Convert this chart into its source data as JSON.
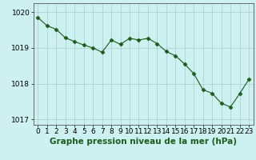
{
  "x": [
    0,
    1,
    2,
    3,
    4,
    5,
    6,
    7,
    8,
    9,
    10,
    11,
    12,
    13,
    14,
    15,
    16,
    17,
    18,
    19,
    20,
    21,
    22,
    23
  ],
  "y": [
    1019.85,
    1019.62,
    1019.52,
    1019.28,
    1019.18,
    1019.08,
    1019.0,
    1018.88,
    1019.22,
    1019.1,
    1019.27,
    1019.22,
    1019.27,
    1019.12,
    1018.9,
    1018.78,
    1018.55,
    1018.28,
    1017.83,
    1017.73,
    1017.45,
    1017.35,
    1017.72,
    1018.12
  ],
  "line_color": "#1a5c1a",
  "marker": "D",
  "marker_size": 2.5,
  "bg_color": "#cdf0f0",
  "grid_color": "#aacccc",
  "xlabel": "Graphe pression niveau de la mer (hPa)",
  "xlabel_fontsize": 7.5,
  "xlabel_color": "#1a5c1a",
  "ylim": [
    1016.85,
    1020.25
  ],
  "yticks": [
    1017,
    1018,
    1019,
    1020
  ],
  "xtick_labels": [
    "0",
    "1",
    "2",
    "3",
    "4",
    "5",
    "6",
    "7",
    "8",
    "9",
    "10",
    "11",
    "12",
    "13",
    "14",
    "15",
    "16",
    "17",
    "18",
    "19",
    "20",
    "21",
    "22",
    "23"
  ],
  "tick_fontsize": 6.5,
  "spine_color": "#555555",
  "fig_bg": "#cdf0f0"
}
